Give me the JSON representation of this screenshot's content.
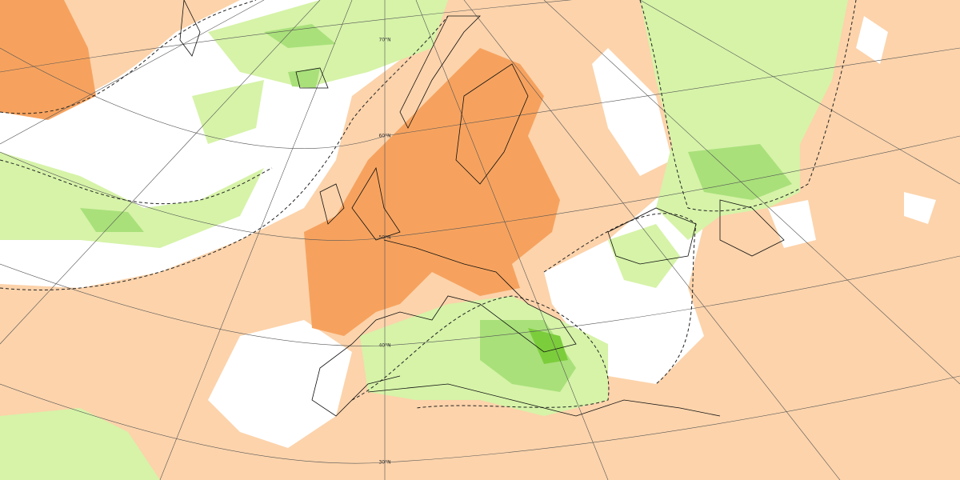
{
  "latitude_labels": [
    "70°N",
    "60°N",
    "50°N",
    "40°N",
    "30°N"
  ]
}
